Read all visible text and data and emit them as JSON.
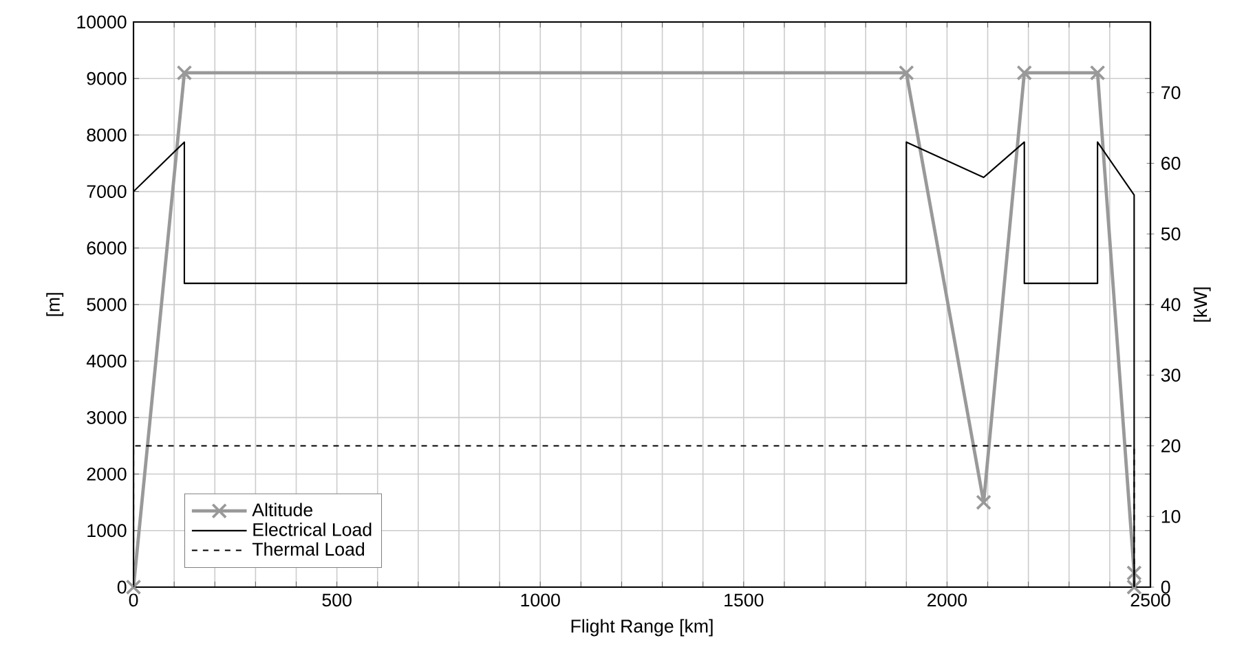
{
  "chart_data": {
    "type": "line",
    "xlabel": "Flight Range [km]",
    "ylabel": "[m]",
    "y2label": "[kW]",
    "xlim": [
      0,
      2500
    ],
    "xticks": [
      0,
      {
        "value": 100,
        "label": null
      },
      {
        "value": 200,
        "label": null
      },
      {
        "value": 300,
        "label": null
      },
      {
        "value": 400,
        "label": null
      },
      500,
      {
        "value": 600,
        "label": null
      },
      {
        "value": 700,
        "label": null
      },
      {
        "value": 800,
        "label": null
      },
      {
        "value": 900,
        "label": null
      },
      1000,
      {
        "value": 1100,
        "label": null
      },
      {
        "value": 1200,
        "label": null
      },
      {
        "value": 1300,
        "label": null
      },
      {
        "value": 1400,
        "label": null
      },
      1500,
      {
        "value": 1600,
        "label": null
      },
      {
        "value": 1700,
        "label": null
      },
      {
        "value": 1800,
        "label": null
      },
      {
        "value": 1900,
        "label": null
      },
      2000,
      {
        "value": 2100,
        "label": null
      },
      {
        "value": 2200,
        "label": null
      },
      {
        "value": 2300,
        "label": null
      },
      {
        "value": 2400,
        "label": null
      },
      2500
    ],
    "ylim": [
      0,
      10000
    ],
    "yticks": [
      0,
      1000,
      2000,
      3000,
      4000,
      5000,
      6000,
      7000,
      8000,
      9000,
      10000
    ],
    "y2lim": [
      0,
      80
    ],
    "y2ticks": [
      0,
      10,
      20,
      30,
      40,
      50,
      60,
      70
    ],
    "grid": true,
    "legend": "bottom left",
    "series": [
      {
        "name": "Altitude",
        "color": "#999999",
        "marker": "cross",
        "line_style": "solid",
        "x": [
          0,
          125,
          1900,
          2090,
          2190,
          2370,
          2460,
          2460
        ],
        "values": [
          0,
          9100,
          9100,
          1500,
          9100,
          9100,
          250,
          0
        ]
      },
      {
        "name": "Electrical Load",
        "color": "#000000",
        "marker": "none",
        "line_style": "solid",
        "axis": "y2",
        "x": [
          0,
          0,
          125,
          125,
          1900,
          1900,
          2090,
          2190,
          2190,
          2370,
          2370,
          2460,
          2460
        ],
        "values": [
          0,
          56,
          63,
          43,
          43,
          63,
          58,
          63,
          43,
          43,
          63,
          55.5,
          0
        ]
      },
      {
        "name": "Thermal Load",
        "color": "#000000",
        "marker": "none",
        "line_style": "dashed",
        "axis": "y2",
        "x": [
          0,
          0,
          2460,
          2460
        ],
        "values": [
          0,
          20,
          20,
          0
        ]
      }
    ]
  }
}
